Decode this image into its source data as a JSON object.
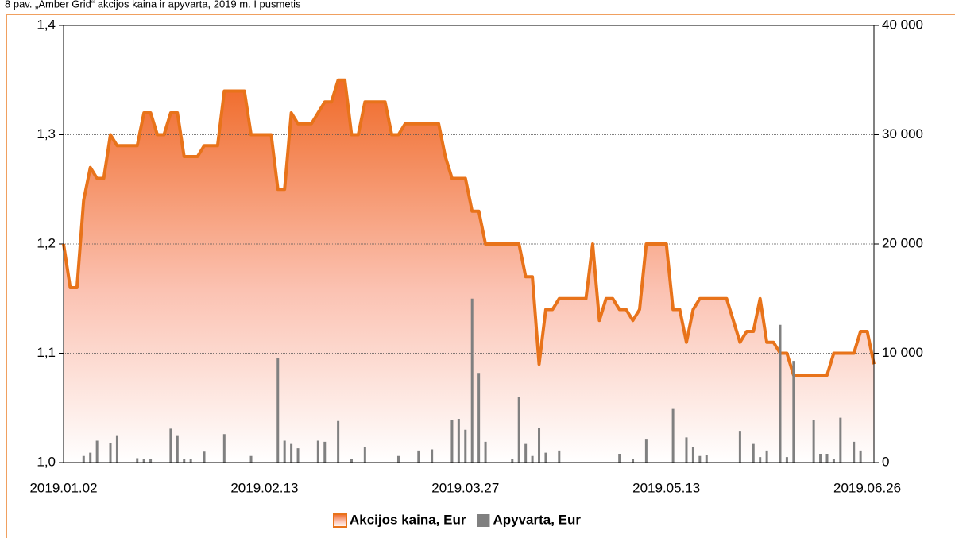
{
  "chart_data": {
    "type": "line",
    "title": "8 pav. „Amber Grid“ akcijos kaina ir apyvarta, 2019 m. I pusmetis",
    "categories": [
      "2019.01.02",
      null,
      null,
      null,
      null,
      null,
      null,
      null,
      null,
      null,
      null,
      null,
      null,
      null,
      null,
      null,
      null,
      null,
      null,
      null,
      null,
      null,
      null,
      null,
      null,
      null,
      null,
      null,
      null,
      null,
      "2019.02.13",
      null,
      null,
      null,
      null,
      null,
      null,
      null,
      null,
      null,
      null,
      null,
      null,
      null,
      null,
      null,
      null,
      null,
      null,
      null,
      null,
      null,
      null,
      null,
      null,
      null,
      null,
      null,
      null,
      null,
      "2019.03.27",
      null,
      null,
      null,
      null,
      null,
      null,
      null,
      null,
      null,
      null,
      null,
      null,
      null,
      null,
      null,
      null,
      null,
      null,
      null,
      null,
      null,
      null,
      null,
      null,
      null,
      null,
      null,
      null,
      null,
      "2019.05.13",
      null,
      null,
      null,
      null,
      null,
      null,
      null,
      null,
      null,
      null,
      null,
      null,
      null,
      null,
      null,
      null,
      null,
      null,
      null,
      null,
      null,
      null,
      null,
      null,
      null,
      null,
      null,
      null,
      null,
      "2019.06.26",
      null
    ],
    "series": [
      {
        "name": "Akcijos kaina, Eur",
        "color": "#e8731a",
        "axis": "y",
        "values": [
          1.2,
          1.16,
          1.16,
          1.24,
          1.27,
          1.26,
          1.26,
          1.3,
          1.29,
          1.29,
          1.29,
          1.29,
          1.32,
          1.32,
          1.3,
          1.3,
          1.32,
          1.32,
          1.28,
          1.28,
          1.28,
          1.29,
          1.29,
          1.29,
          1.34,
          1.34,
          1.34,
          1.34,
          1.3,
          1.3,
          1.3,
          1.3,
          1.25,
          1.25,
          1.32,
          1.31,
          1.31,
          1.31,
          1.32,
          1.33,
          1.33,
          1.35,
          1.35,
          1.3,
          1.3,
          1.33,
          1.33,
          1.33,
          1.33,
          1.3,
          1.3,
          1.31,
          1.31,
          1.31,
          1.31,
          1.31,
          1.31,
          1.28,
          1.26,
          1.26,
          1.26,
          1.23,
          1.23,
          1.2,
          1.2,
          1.2,
          1.2,
          1.2,
          1.2,
          1.17,
          1.17,
          1.09,
          1.14,
          1.14,
          1.15,
          1.15,
          1.15,
          1.15,
          1.15,
          1.2,
          1.13,
          1.15,
          1.15,
          1.14,
          1.14,
          1.13,
          1.14,
          1.2,
          1.2,
          1.2,
          1.2,
          1.14,
          1.14,
          1.11,
          1.14,
          1.15,
          1.15,
          1.15,
          1.15,
          1.15,
          1.13,
          1.11,
          1.12,
          1.12,
          1.15,
          1.11,
          1.11,
          1.1,
          1.1,
          1.08,
          1.08,
          1.08,
          1.08,
          1.08,
          1.08,
          1.1,
          1.1,
          1.1,
          1.1,
          1.12,
          1.12,
          1.09
        ]
      },
      {
        "name": "Apyvarta, Eur",
        "color": "#808080",
        "axis": "y2",
        "values": [
          0,
          0,
          0,
          600,
          900,
          2000,
          0,
          1800,
          2500,
          0,
          0,
          400,
          300,
          300,
          0,
          0,
          3100,
          2500,
          300,
          300,
          0,
          1000,
          0,
          0,
          2600,
          0,
          0,
          0,
          600,
          0,
          0,
          0,
          9600,
          2000,
          1700,
          1300,
          0,
          0,
          2000,
          1900,
          0,
          3800,
          0,
          300,
          0,
          1400,
          0,
          0,
          0,
          0,
          600,
          0,
          0,
          1100,
          0,
          1200,
          0,
          0,
          3900,
          4000,
          3000,
          15000,
          8200,
          1900,
          0,
          0,
          0,
          300,
          6000,
          1700,
          600,
          3200,
          900,
          0,
          1100,
          0,
          0,
          0,
          0,
          0,
          0,
          0,
          0,
          800,
          0,
          300,
          0,
          2100,
          0,
          0,
          0,
          4900,
          0,
          2300,
          1400,
          600,
          700,
          0,
          0,
          0,
          0,
          2900,
          0,
          1700,
          500,
          1100,
          0,
          12600,
          500,
          9300,
          0,
          0,
          3900,
          800,
          800,
          300,
          4100,
          0,
          1900,
          1100,
          0,
          0
        ]
      }
    ],
    "ylim": [
      1.0,
      1.4
    ],
    "yticks": [
      {
        "value": 1.0,
        "label": "1,0"
      },
      {
        "value": 1.1,
        "label": "1,1"
      },
      {
        "value": 1.2,
        "label": "1,2"
      },
      {
        "value": 1.3,
        "label": "1,3"
      },
      {
        "value": 1.4,
        "label": "1,4"
      }
    ],
    "y2lim": [
      0,
      40000
    ],
    "y2ticks": [
      0,
      {
        "value": 10000,
        "label": "10 000"
      },
      {
        "value": 20000,
        "label": "20 000"
      },
      {
        "value": 30000,
        "label": "30 000"
      },
      {
        "value": 40000,
        "label": "40 000"
      }
    ],
    "grid": true,
    "legend": "bottom"
  }
}
